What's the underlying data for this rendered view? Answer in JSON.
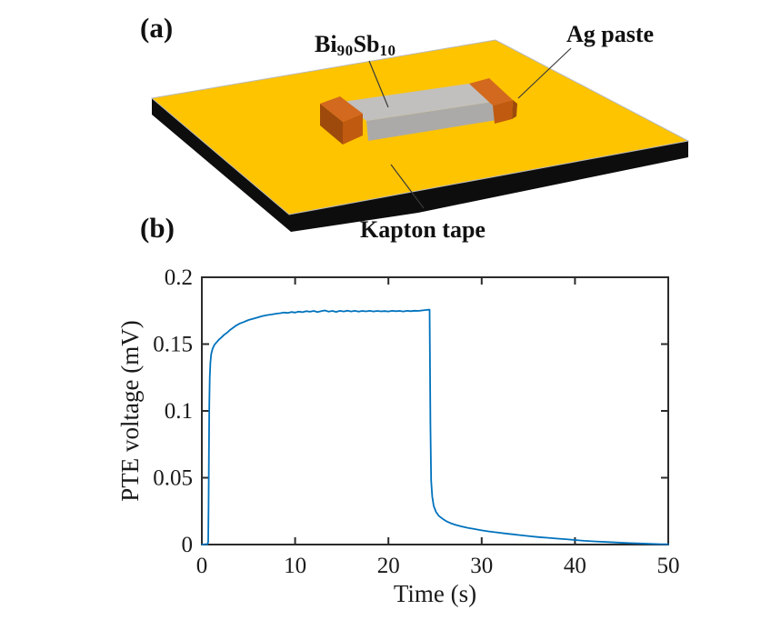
{
  "figure": {
    "panel_a_label": "(a)",
    "panel_b_label": "(b)",
    "schematic": {
      "sample_label": {
        "part1": "Bi",
        "sub1": "90",
        "part2": "Sb",
        "sub2": "10"
      },
      "ag_paste_label": "Ag paste",
      "kapton_label": "Kapton tape",
      "colors": {
        "tape_yellow": "#FFC400",
        "tape_black": "#0d0d0d",
        "sample_gray_top": "#C2C0BE",
        "sample_gray_front": "#ACAAA8",
        "contact_orange_top": "#D2691E",
        "contact_orange_front": "#C05A10",
        "contact_orange_dark": "#9E4A0C",
        "pointer_line": "#3a3a3a"
      }
    }
  },
  "chart_data": {
    "type": "line",
    "title": "",
    "xlabel": "Time (s)",
    "ylabel": "PTE voltage (mV)",
    "xlim": [
      0,
      50
    ],
    "ylim": [
      0,
      0.2
    ],
    "xticks": [
      0,
      10,
      20,
      30,
      40,
      50
    ],
    "yticks": [
      0,
      0.05,
      0.1,
      0.15,
      0.2
    ],
    "xtick_labels": [
      "0",
      "10",
      "20",
      "30",
      "40",
      "50"
    ],
    "ytick_labels": [
      "0",
      "0.05",
      "0.1",
      "0.15",
      "0.2"
    ],
    "grid": false,
    "legend": "none",
    "box": true,
    "line_color": "#0072BD",
    "axis_color": "#2b2b2b",
    "series": [
      {
        "name": "PTE voltage",
        "points": [
          [
            0,
            0
          ],
          [
            0.4,
            0.0002
          ],
          [
            0.6,
            0.0003
          ],
          [
            0.68,
            0.002
          ],
          [
            0.72,
            0.03
          ],
          [
            0.76,
            0.07
          ],
          [
            0.8,
            0.105
          ],
          [
            0.85,
            0.125
          ],
          [
            0.92,
            0.136
          ],
          [
            1.0,
            0.1425
          ],
          [
            1.15,
            0.1465
          ],
          [
            1.35,
            0.1495
          ],
          [
            1.6,
            0.1515
          ],
          [
            1.85,
            0.1535
          ],
          [
            2.1,
            0.155
          ],
          [
            2.4,
            0.157
          ],
          [
            2.7,
            0.1585
          ],
          [
            3.0,
            0.1605
          ],
          [
            3.3,
            0.162
          ],
          [
            3.7,
            0.164
          ],
          [
            4.1,
            0.1655
          ],
          [
            4.5,
            0.1665
          ],
          [
            5.0,
            0.168
          ],
          [
            5.5,
            0.169
          ],
          [
            6.0,
            0.17
          ],
          [
            6.5,
            0.171
          ],
          [
            7.0,
            0.1717
          ],
          [
            7.5,
            0.1722
          ],
          [
            8.0,
            0.1728
          ],
          [
            8.4,
            0.1731
          ],
          [
            8.8,
            0.1736
          ],
          [
            9.2,
            0.1733
          ],
          [
            9.6,
            0.174
          ],
          [
            10.0,
            0.1736
          ],
          [
            10.4,
            0.1743
          ],
          [
            10.8,
            0.1739
          ],
          [
            11.2,
            0.1746
          ],
          [
            11.6,
            0.1742
          ],
          [
            12.0,
            0.1748
          ],
          [
            12.4,
            0.174
          ],
          [
            12.8,
            0.1747
          ],
          [
            13.2,
            0.1752
          ],
          [
            13.6,
            0.1743
          ],
          [
            14.0,
            0.1748
          ],
          [
            14.4,
            0.1741
          ],
          [
            14.8,
            0.1749
          ],
          [
            15.2,
            0.1744
          ],
          [
            15.6,
            0.175
          ],
          [
            16.0,
            0.1744
          ],
          [
            16.4,
            0.1749
          ],
          [
            16.8,
            0.1743
          ],
          [
            17.2,
            0.1748
          ],
          [
            17.6,
            0.1745
          ],
          [
            18.0,
            0.1749
          ],
          [
            18.4,
            0.1744
          ],
          [
            18.8,
            0.1748
          ],
          [
            19.2,
            0.1745
          ],
          [
            19.6,
            0.1747
          ],
          [
            20.0,
            0.1744
          ],
          [
            20.4,
            0.1749
          ],
          [
            20.8,
            0.1746
          ],
          [
            21.2,
            0.1748
          ],
          [
            21.6,
            0.1744
          ],
          [
            22.0,
            0.1749
          ],
          [
            22.4,
            0.1746
          ],
          [
            22.8,
            0.175
          ],
          [
            23.2,
            0.1748
          ],
          [
            23.6,
            0.1752
          ],
          [
            24.0,
            0.1755
          ],
          [
            24.3,
            0.1757
          ],
          [
            24.42,
            0.1758
          ],
          [
            24.5,
            0.09
          ],
          [
            24.58,
            0.048
          ],
          [
            24.7,
            0.036
          ],
          [
            24.85,
            0.029
          ],
          [
            25.1,
            0.0245
          ],
          [
            25.4,
            0.0215
          ],
          [
            25.8,
            0.0193
          ],
          [
            26.2,
            0.0175
          ],
          [
            26.7,
            0.0159
          ],
          [
            27.2,
            0.0147
          ],
          [
            27.8,
            0.0136
          ],
          [
            28.5,
            0.0125
          ],
          [
            29.2,
            0.0116
          ],
          [
            30.0,
            0.0106
          ],
          [
            30.8,
            0.0098
          ],
          [
            31.6,
            0.0091
          ],
          [
            32.5,
            0.0083
          ],
          [
            33.4,
            0.0076
          ],
          [
            34.3,
            0.0069
          ],
          [
            35.2,
            0.0062
          ],
          [
            36.1,
            0.0056
          ],
          [
            37.0,
            0.0051
          ],
          [
            38.0,
            0.0045
          ],
          [
            39.0,
            0.004
          ],
          [
            40.0,
            0.0034
          ],
          [
            41.0,
            0.0028
          ],
          [
            42.2,
            0.0023
          ],
          [
            43.4,
            0.0019
          ],
          [
            44.6,
            0.0015
          ],
          [
            45.8,
            0.0011
          ],
          [
            47.0,
            0.0008
          ],
          [
            48.2,
            0.0005
          ],
          [
            49.2,
            0.0003
          ],
          [
            50,
            0.0002
          ]
        ]
      }
    ]
  }
}
